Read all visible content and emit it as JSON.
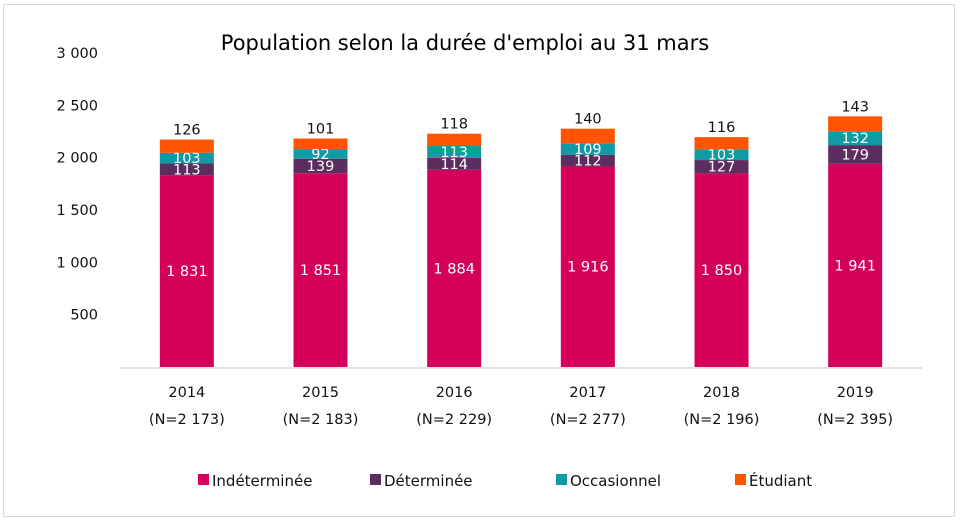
{
  "chart_data": {
    "type": "bar",
    "stacked": true,
    "title": "Population selon la durée d'emploi au 31 mars",
    "xlabel": "",
    "ylabel": "",
    "ylim": [
      0,
      3000
    ],
    "yticks": [
      500,
      1000,
      1500,
      2000,
      2500,
      3000
    ],
    "ytick_labels": [
      "500",
      "1 000",
      "1 500",
      "2 000",
      "2 500",
      "3 000"
    ],
    "grid": false,
    "legend_position": "bottom",
    "categories": [
      "2014",
      "2015",
      "2016",
      "2017",
      "2018",
      "2019"
    ],
    "category_sublabels": [
      "(N=2 173)",
      "(N=2 183)",
      "(N=2 229)",
      "(N=2 277)",
      "(N=2 196)",
      "(N=2 395)"
    ],
    "series": [
      {
        "name": "Indéterminée",
        "color": "#d5005a",
        "values": [
          1831,
          1851,
          1884,
          1916,
          1850,
          1941
        ],
        "labels": [
          "1 831",
          "1 851",
          "1 884",
          "1 916",
          "1 850",
          "1 941"
        ]
      },
      {
        "name": "Déterminée",
        "color": "#5c2e5f",
        "values": [
          113,
          139,
          114,
          112,
          127,
          179
        ],
        "labels": [
          "113",
          "139",
          "114",
          "112",
          "127",
          "179"
        ]
      },
      {
        "name": "Occasionnel",
        "color": "#0f9aa4",
        "values": [
          103,
          92,
          113,
          109,
          103,
          132
        ],
        "labels": [
          "103",
          "92",
          "113",
          "109",
          "103",
          "132"
        ]
      },
      {
        "name": "Étudiant",
        "color": "#ff5500",
        "values": [
          126,
          101,
          118,
          140,
          116,
          143
        ],
        "labels": [
          "126",
          "101",
          "118",
          "140",
          "116",
          "143"
        ]
      }
    ]
  }
}
